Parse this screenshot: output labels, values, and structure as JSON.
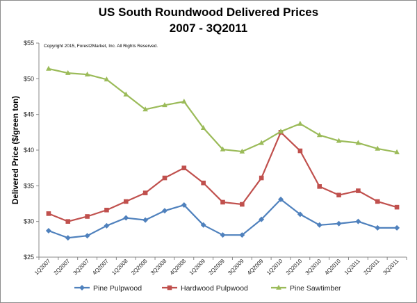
{
  "chart_data": {
    "type": "line",
    "title": "US South Roundwood Delivered Prices",
    "subtitle": "2007 - 3Q2011",
    "ylabel": "Delivered Price ($/green ton)",
    "xlabel": "",
    "copyright": "Copyright 2015, Forest2Market, Inc. All Rights Reserved.",
    "ylim": [
      25,
      55
    ],
    "yticks": [
      "$25",
      "$30",
      "$35",
      "$40",
      "$45",
      "$50",
      "$55"
    ],
    "categories": [
      "1Q2007",
      "2Q2007",
      "3Q2007",
      "4Q2007",
      "1Q2008",
      "2Q2008",
      "3Q2008",
      "4Q2008",
      "1Q2009",
      "2Q2009",
      "3Q2009",
      "4Q2009",
      "1Q2010",
      "2Q2010",
      "3Q2010",
      "4Q2010",
      "1Q2011",
      "2Q2011",
      "3Q2011"
    ],
    "series": [
      {
        "name": "Pine Pulpwood",
        "color": "#4f81bd",
        "marker": "diamond",
        "values": [
          28.7,
          27.7,
          28.0,
          29.4,
          30.5,
          30.2,
          31.5,
          32.3,
          29.5,
          28.1,
          28.1,
          30.3,
          33.1,
          31.0,
          29.5,
          29.7,
          30.0,
          29.1,
          29.1
        ]
      },
      {
        "name": "Hardwood Pulpwood",
        "color": "#c0504d",
        "marker": "square",
        "values": [
          31.1,
          30.0,
          30.7,
          31.6,
          32.8,
          34.0,
          36.1,
          37.5,
          35.4,
          32.7,
          32.4,
          36.1,
          42.5,
          39.9,
          34.9,
          33.7,
          34.3,
          32.8,
          32.0
        ]
      },
      {
        "name": "Pine Sawtimber",
        "color": "#9bbb59",
        "marker": "triangle",
        "values": [
          51.4,
          50.8,
          50.6,
          49.9,
          47.8,
          45.7,
          46.3,
          46.8,
          43.1,
          40.1,
          39.8,
          41.0,
          42.6,
          43.7,
          42.1,
          41.3,
          41.0,
          40.2,
          39.7
        ]
      }
    ],
    "grid": false,
    "legend": "bottom"
  }
}
